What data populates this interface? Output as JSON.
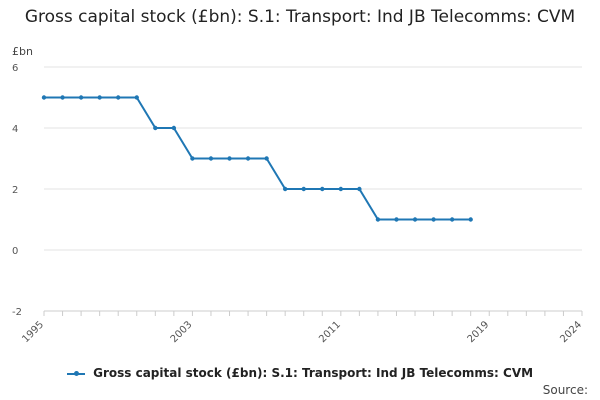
{
  "chart_data": {
    "type": "line",
    "title": "Gross capital stock (£bn): S.1: Transport: Ind JB Telecomms: CVM",
    "ylabel": "£bn",
    "xlabel": "",
    "xlim": [
      1995,
      2024
    ],
    "ylim": [
      -2,
      6
    ],
    "y_ticks": [
      -2,
      0,
      2,
      4,
      6
    ],
    "x_ticks": [
      1995,
      2003,
      2011,
      2019,
      2024
    ],
    "grid": true,
    "legend_position": "bottom",
    "series": [
      {
        "name": "Gross capital stock (£bn): S.1: Transport: Ind JB Telecomms: CVM",
        "color": "#1f77b4",
        "x": [
          1995,
          1996,
          1997,
          1998,
          1999,
          2000,
          2001,
          2002,
          2003,
          2004,
          2005,
          2006,
          2007,
          2008,
          2009,
          2010,
          2011,
          2012,
          2013,
          2014,
          2015,
          2016,
          2017,
          2018
        ],
        "y": [
          5,
          5,
          5,
          5,
          5,
          5,
          4,
          4,
          3,
          3,
          3,
          3,
          3,
          2,
          2,
          2,
          2,
          2,
          1,
          1,
          1,
          1,
          1,
          1
        ]
      }
    ]
  },
  "source_label": "Source:"
}
